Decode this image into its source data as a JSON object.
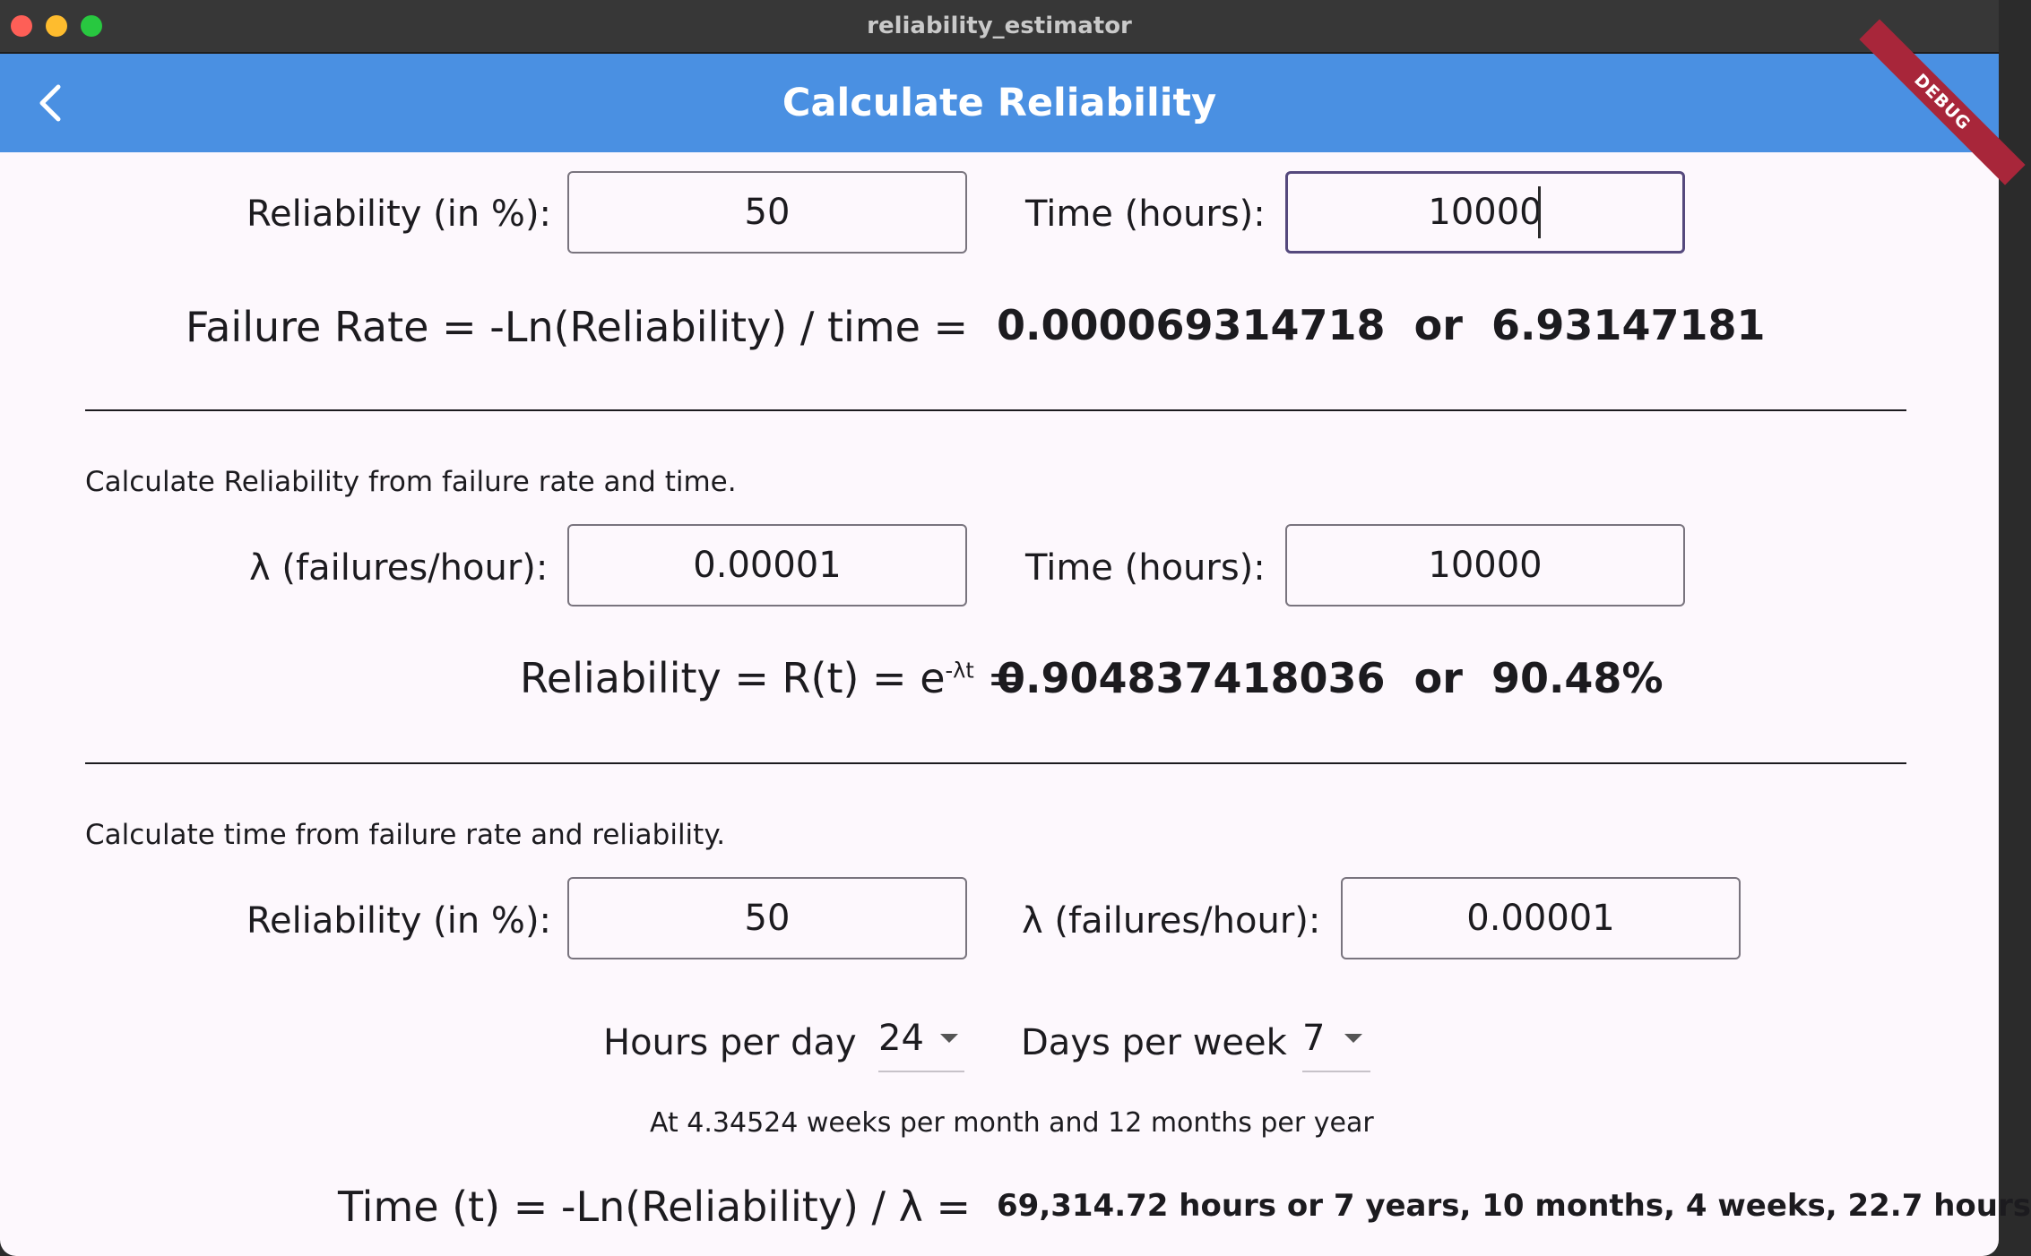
{
  "window": {
    "title": "reliability_estimator"
  },
  "appbar": {
    "title": "Calculate Reliability",
    "debug_banner": "DEBUG"
  },
  "section1": {
    "reliability_label": "Reliability (in %):",
    "reliability_value": "50",
    "time_label": "Time (hours):",
    "time_value": "10000",
    "formula_text": "Failure Rate  =  -Ln(Reliability) / time  =",
    "result_a": "0.000069314718",
    "result_or": "or",
    "result_b": "6.93147181"
  },
  "section2": {
    "title": "Calculate Reliability from failure rate and time.",
    "lambda_label": "λ (failures/hour):",
    "lambda_value": "0.00001",
    "time_label": "Time (hours):",
    "time_value": "10000",
    "formula_prefix": "Reliability = R(t) = e",
    "formula_exponent": "-λt",
    "formula_suffix": " =",
    "result_a": "0.904837418036",
    "result_or": "or",
    "result_b": "90.48%"
  },
  "section3": {
    "title": "Calculate time from failure rate and reliability.",
    "reliability_label": "Reliability (in %):",
    "reliability_value": "50",
    "lambda_label": "λ (failures/hour):",
    "lambda_value": "0.00001",
    "hours_per_day_label": "Hours per day",
    "hours_per_day_value": "24",
    "days_per_week_label": "Days per week",
    "days_per_week_value": "7",
    "note": "At 4.34524 weeks per month and 12 months per year",
    "formula_text": "Time (t)  =  -Ln(Reliability) / λ  =",
    "result": "69,314.72 hours or 7 years, 10 months, 4 weeks, 22.7 hours"
  }
}
